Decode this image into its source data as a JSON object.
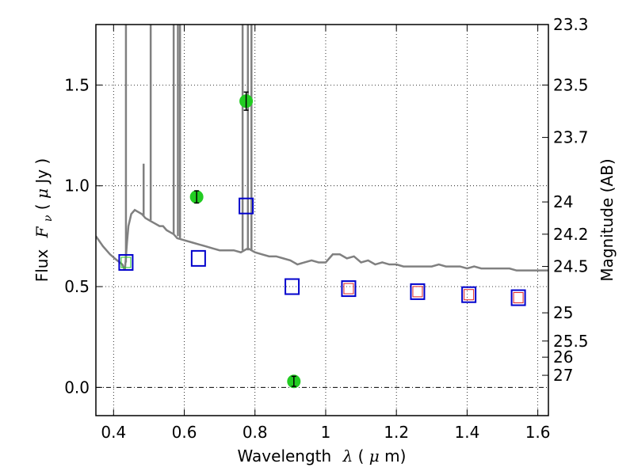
{
  "chart_data": {
    "type": "scatter",
    "title": "",
    "xlabel": "Wavelength",
    "xlabel_symbol": "λ",
    "xlabel_unit_open": " (",
    "xlabel_unit_mu": "μ",
    "xlabel_unit_rest": "m)",
    "ylabel": "Flux",
    "ylabel_symbol": "F",
    "ylabel_sub": "ν",
    "ylabel_unit_open": " (  ",
    "ylabel_unit_mu": "μ",
    "ylabel_unit_rest": "Jy )",
    "y2label": "Magnitude (AB)",
    "xlim": [
      0.35,
      1.63
    ],
    "ylim": [
      -0.14,
      1.8
    ],
    "grid": true,
    "x_ticks": [
      0.4,
      0.6,
      0.8,
      1.0,
      1.2,
      1.4,
      1.6
    ],
    "x_tick_labels": [
      "0.4",
      "0.6",
      "0.8",
      "1",
      "1.2",
      "1.4",
      "1.6"
    ],
    "y_ticks": [
      0.0,
      0.5,
      1.0,
      1.5
    ],
    "y_tick_labels": [
      "0.0",
      "0.5",
      "1.0",
      "1.5"
    ],
    "y2_ticks": [
      {
        "label": "23.3",
        "flux": 1.8
      },
      {
        "label": "23.5",
        "flux": 1.5
      },
      {
        "label": "23.7",
        "flux": 1.24
      },
      {
        "label": "24",
        "flux": 0.92
      },
      {
        "label": "24.2",
        "flux": 0.76
      },
      {
        "label": "24.5",
        "flux": 0.6
      },
      {
        "label": "25",
        "flux": 0.37
      },
      {
        "label": "25.5",
        "flux": 0.23
      },
      {
        "label": "26",
        "flux": 0.15
      },
      {
        "label": "27",
        "flux": 0.06
      }
    ],
    "series": [
      {
        "kind": "model_spectrum",
        "color": "#808080",
        "x": [
          0.35,
          0.37,
          0.39,
          0.41,
          0.425,
          0.432,
          0.438,
          0.442,
          0.45,
          0.46,
          0.47,
          0.48,
          0.49,
          0.5,
          0.51,
          0.52,
          0.53,
          0.54,
          0.55,
          0.56,
          0.57,
          0.58,
          0.6,
          0.62,
          0.64,
          0.66,
          0.68,
          0.7,
          0.72,
          0.74,
          0.76,
          0.78,
          0.8,
          0.82,
          0.84,
          0.86,
          0.88,
          0.9,
          0.91,
          0.92,
          0.94,
          0.96,
          0.98,
          1.0,
          1.01,
          1.02,
          1.04,
          1.06,
          1.08,
          1.1,
          1.12,
          1.14,
          1.16,
          1.18,
          1.2,
          1.22,
          1.24,
          1.26,
          1.28,
          1.3,
          1.32,
          1.34,
          1.36,
          1.38,
          1.4,
          1.42,
          1.44,
          1.46,
          1.48,
          1.5,
          1.52,
          1.54,
          1.56,
          1.58,
          1.6,
          1.63
        ],
        "y": [
          0.75,
          0.7,
          0.66,
          0.63,
          0.61,
          0.58,
          0.72,
          0.8,
          0.86,
          0.88,
          0.87,
          0.86,
          0.84,
          0.83,
          0.82,
          0.81,
          0.8,
          0.8,
          0.78,
          0.77,
          0.76,
          0.74,
          0.73,
          0.72,
          0.71,
          0.7,
          0.69,
          0.68,
          0.68,
          0.68,
          0.67,
          0.69,
          0.67,
          0.66,
          0.65,
          0.65,
          0.64,
          0.63,
          0.62,
          0.61,
          0.62,
          0.63,
          0.62,
          0.62,
          0.64,
          0.66,
          0.66,
          0.64,
          0.65,
          0.62,
          0.63,
          0.61,
          0.62,
          0.61,
          0.61,
          0.6,
          0.6,
          0.6,
          0.6,
          0.6,
          0.61,
          0.6,
          0.6,
          0.6,
          0.59,
          0.6,
          0.59,
          0.59,
          0.59,
          0.59,
          0.59,
          0.58,
          0.58,
          0.58,
          0.58,
          0.58
        ]
      },
      {
        "kind": "emission_lines",
        "color": "#808080",
        "lines": [
          {
            "x": 0.435,
            "top": 1.8,
            "base": 0.62
          },
          {
            "x": 0.485,
            "top": 1.11,
            "base": 0.85
          },
          {
            "x": 0.505,
            "top": 1.8,
            "base": 0.83
          },
          {
            "x": 0.57,
            "top": 1.8,
            "base": 0.76
          },
          {
            "x": 0.582,
            "top": 1.8,
            "base": 0.75
          },
          {
            "x": 0.588,
            "top": 1.8,
            "base": 0.74
          },
          {
            "x": 0.765,
            "top": 1.8,
            "base": 0.68
          },
          {
            "x": 0.78,
            "top": 1.8,
            "base": 0.68
          },
          {
            "x": 0.79,
            "top": 1.8,
            "base": 0.68
          }
        ]
      },
      {
        "kind": "observed_photometry",
        "color": "#22cc22",
        "points": [
          {
            "x": 0.635,
            "y": 0.945,
            "err": 0.03
          },
          {
            "x": 0.775,
            "y": 1.42,
            "err": 0.045
          },
          {
            "x": 0.91,
            "y": 0.03,
            "err": 0.025
          }
        ]
      },
      {
        "kind": "model_photometry",
        "color": "#0000cc",
        "points": [
          {
            "x": 0.435,
            "y": 0.62
          },
          {
            "x": 0.64,
            "y": 0.64
          },
          {
            "x": 0.775,
            "y": 0.9
          },
          {
            "x": 0.905,
            "y": 0.5
          },
          {
            "x": 1.065,
            "y": 0.49
          },
          {
            "x": 1.26,
            "y": 0.475
          },
          {
            "x": 1.405,
            "y": 0.46
          },
          {
            "x": 1.545,
            "y": 0.445
          }
        ]
      },
      {
        "kind": "model_photometry_inner",
        "color": "#dd2222",
        "points": [
          {
            "x": 1.065,
            "y": 0.49
          },
          {
            "x": 1.26,
            "y": 0.475
          },
          {
            "x": 1.405,
            "y": 0.46
          },
          {
            "x": 1.545,
            "y": 0.445
          }
        ]
      },
      {
        "kind": "model_photometry_inner",
        "color": "#22cc22",
        "points": [
          {
            "x": 0.435,
            "y": 0.62
          }
        ]
      }
    ]
  }
}
